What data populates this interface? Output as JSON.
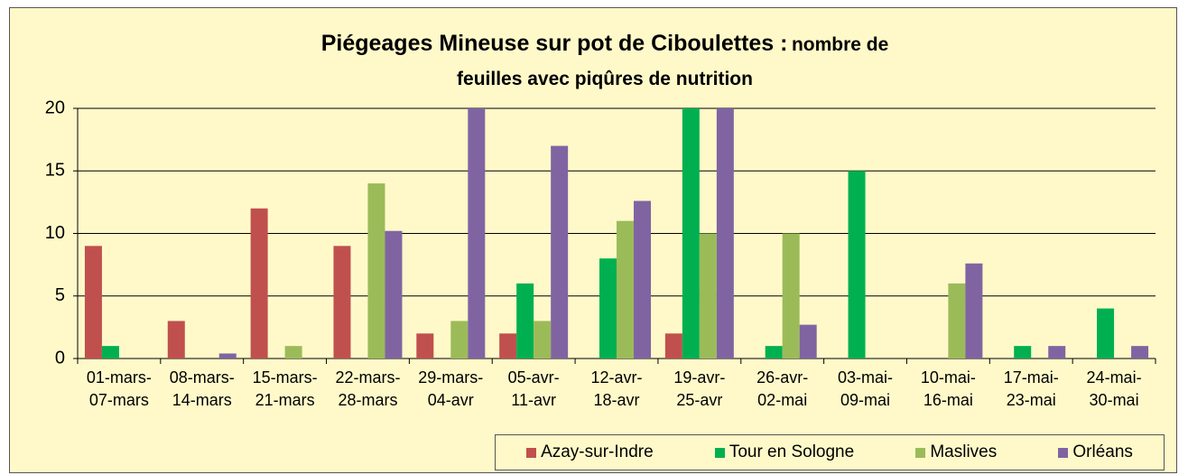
{
  "chart_data": {
    "type": "bar",
    "title": "Piégeages Mineuse sur pot de Ciboulettes :",
    "subtitle": "nombre de feuilles avec piqûres de nutrition",
    "categories": [
      "01-mars-07-mars",
      "08-mars-14-mars",
      "15-mars-21-mars",
      "22-mars-28-mars",
      "29-mars-04-avr",
      "05-avr-11-avr",
      "12-avr-18-avr",
      "19-avr-25-avr",
      "26-avr-02-mai",
      "03-mai-09-mai",
      "10-mai-16-mai",
      "17-mai-23-mai",
      "24-mai-30-mai"
    ],
    "series": [
      {
        "name": "Azay-sur-Indre",
        "color": "#c0504d",
        "values": [
          9,
          3,
          12,
          9,
          2,
          2,
          0,
          2,
          0,
          0,
          0,
          0,
          0
        ]
      },
      {
        "name": "Tour en Sologne",
        "color": "#00b050",
        "values": [
          1,
          0,
          0,
          0,
          0,
          6,
          8,
          20,
          1,
          15,
          0,
          1,
          4
        ]
      },
      {
        "name": "Maslives",
        "color": "#9bbb59",
        "values": [
          0,
          0,
          1,
          14,
          3,
          3,
          11,
          10,
          10,
          0,
          6,
          0,
          0
        ]
      },
      {
        "name": "Orléans",
        "color": "#8064a2",
        "values": [
          0,
          0.4,
          0,
          10.2,
          20,
          17,
          12.6,
          20,
          2.7,
          0,
          7.6,
          1,
          1
        ]
      }
    ],
    "ylim": [
      0,
      20
    ],
    "yticks": [
      0,
      5,
      10,
      15,
      20
    ],
    "grid": true,
    "legend": "bottom-right"
  }
}
